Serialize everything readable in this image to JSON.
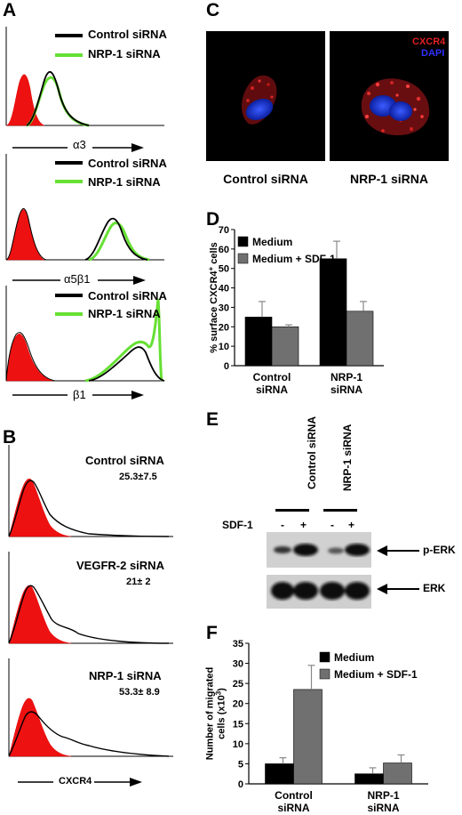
{
  "panels": {
    "A": {
      "label": "A",
      "plots": [
        {
          "legend": [
            "Control siRNA",
            "NRP-1 siRNA"
          ],
          "xlabel": "α3"
        },
        {
          "legend": [
            "Control siRNA",
            "NRP-1 siRNA"
          ],
          "xlabel": "α5β1"
        },
        {
          "legend": [
            "Control siRNA",
            "NRP-1 siRNA"
          ],
          "xlabel": "β1"
        }
      ]
    },
    "B": {
      "label": "B",
      "plots": [
        {
          "title": "Control siRNA",
          "value": "25.3±7.5"
        },
        {
          "title": "VEGFR-2 siRNA",
          "value": "21± 2"
        },
        {
          "title": "NRP-1 siRNA",
          "value": "53.3± 8.9"
        }
      ],
      "xlabel": "CXCR4"
    },
    "C": {
      "label": "C",
      "images": [
        {
          "caption": "Control siRNA"
        },
        {
          "caption": "NRP-1 siRNA",
          "legend": [
            "CXCR4",
            "DAPI"
          ]
        }
      ]
    },
    "D": {
      "label": "D"
    },
    "E": {
      "label": "E",
      "lanes_header": [
        "Control siRNA",
        "NRP-1 siRNA"
      ],
      "sdf_label": "SDF-1",
      "signs": [
        "-",
        "+",
        "-",
        "+"
      ],
      "bands": [
        "p-ERK",
        "ERK"
      ]
    },
    "F": {
      "label": "F"
    }
  },
  "colors": {
    "control": "#000000",
    "nrp1": "#66e033",
    "isotype": "#ee1111",
    "medium": "#000000",
    "sdf": "#707070"
  },
  "chart_data": [
    {
      "id": "D",
      "type": "bar",
      "categories": [
        "Control siRNA",
        "NRP-1 siRNA"
      ],
      "category_lines": [
        [
          "Control",
          "siRNA"
        ],
        [
          "NRP-1",
          "siRNA"
        ]
      ],
      "series": [
        {
          "name": "Medium",
          "values": [
            25,
            55
          ],
          "errors": [
            8,
            9
          ]
        },
        {
          "name": "Medium + SDF-1",
          "values": [
            20,
            28
          ],
          "errors": [
            1,
            5
          ]
        }
      ],
      "ylabel": "% surface CXCR4+ cells",
      "ylim": [
        0,
        70
      ],
      "yticks": [
        0,
        10,
        20,
        30,
        40,
        50,
        60,
        70
      ],
      "legend_position": "top-left"
    },
    {
      "id": "F",
      "type": "bar",
      "categories": [
        "Control siRNA",
        "NRP-1 siRNA"
      ],
      "category_lines": [
        [
          "Control",
          "siRNA"
        ],
        [
          "NRP-1",
          "siRNA"
        ]
      ],
      "series": [
        {
          "name": "Medium",
          "values": [
            5,
            2.5
          ],
          "errors": [
            1.5,
            1.5
          ]
        },
        {
          "name": "Medium + SDF-1",
          "values": [
            23.5,
            5.2
          ],
          "errors": [
            6,
            2
          ]
        }
      ],
      "ylabel": "Number of migrated cells (x103)",
      "ylim": [
        0,
        35
      ],
      "yticks": [
        0,
        5,
        10,
        15,
        20,
        25,
        30,
        35
      ],
      "legend_position": "top-right"
    }
  ]
}
